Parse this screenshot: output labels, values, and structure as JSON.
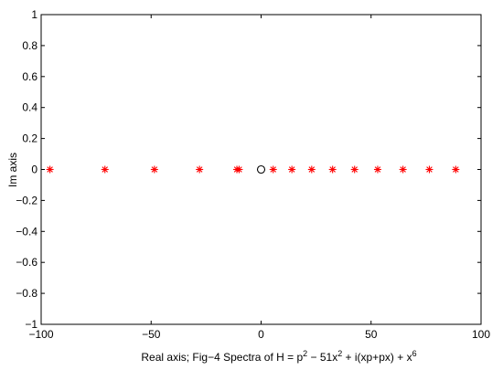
{
  "chart_data": {
    "type": "scatter",
    "title": "",
    "xlabel": "Real axis; Fig−4 Spectra of H = p",
    "xlabel_parts": {
      "base": "Real axis; Fig−4 Spectra of H = p",
      "sup1": "2",
      "mid": " − 51x",
      "sup2": "2",
      "tail": " + i(xp+px) + x",
      "sup3": "6"
    },
    "ylabel": "Im axis",
    "xlim": [
      -100,
      100
    ],
    "ylim": [
      -1,
      1
    ],
    "x_ticks": [
      -100,
      -50,
      0,
      50,
      100
    ],
    "x_tick_labels": [
      "−100",
      "−50",
      "0",
      "50",
      "100"
    ],
    "y_ticks": [
      1,
      0.8,
      0.6,
      0.4,
      0.2,
      0,
      -0.2,
      -0.4,
      -0.6,
      -0.8,
      -1
    ],
    "y_tick_labels": [
      "1",
      "0.8",
      "0.6",
      "0.4",
      "0.2",
      "0",
      "−0.2",
      "−0.4",
      "−0.6",
      "−0.8",
      "−1"
    ],
    "grid": false,
    "series": [
      {
        "marker": "asterisk",
        "color": "#ff0000",
        "points": [
          [
            -96,
            0
          ],
          [
            -71,
            0
          ],
          [
            -48.5,
            0
          ],
          [
            -28,
            0
          ],
          [
            -11,
            0
          ],
          [
            -10,
            0
          ],
          [
            5.5,
            0
          ],
          [
            14,
            0
          ],
          [
            23,
            0
          ],
          [
            32.5,
            0
          ],
          [
            42.5,
            0
          ],
          [
            53,
            0
          ],
          [
            64.5,
            0
          ],
          [
            76.5,
            0
          ],
          [
            88.5,
            0
          ]
        ]
      },
      {
        "marker": "circle",
        "color": "#000000",
        "points": [
          [
            0,
            0
          ]
        ]
      }
    ]
  }
}
